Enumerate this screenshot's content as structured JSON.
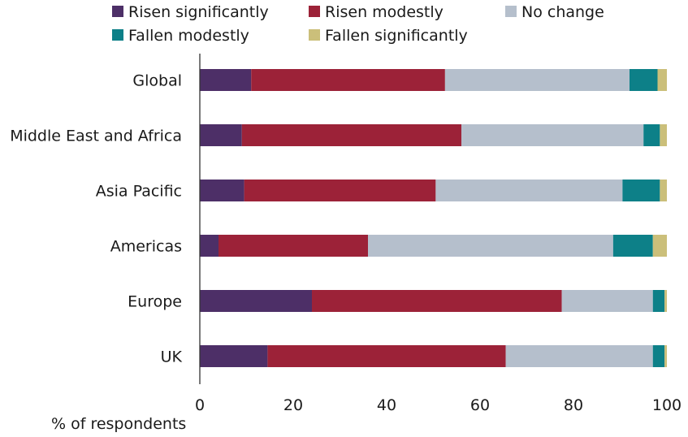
{
  "chart_data": {
    "type": "bar",
    "orientation": "horizontal",
    "stacked": true,
    "title": "",
    "xlabel": "% of respondents",
    "ylabel": "",
    "xlim": [
      0,
      100
    ],
    "xticks": [
      "0",
      "20",
      "40",
      "60",
      "80",
      "100"
    ],
    "grid": false,
    "legend_position": "top",
    "categories": [
      "Global",
      "Middle East and Africa",
      "Asia Pacific",
      "Americas",
      "Europe",
      "UK"
    ],
    "series": [
      {
        "name": "Risen significantly",
        "color": "#4d2f67",
        "values": [
          11,
          9,
          9.5,
          4,
          24,
          14.5
        ]
      },
      {
        "name": "Risen modestly",
        "color": "#9c2238",
        "values": [
          41.5,
          47,
          41,
          32,
          53.5,
          51
        ]
      },
      {
        "name": "No change",
        "color": "#b5bfcc",
        "values": [
          39.5,
          39,
          40,
          52.5,
          19.5,
          31.5
        ]
      },
      {
        "name": "Fallen modestly",
        "color": "#0d8088",
        "values": [
          6,
          3.5,
          8,
          8.5,
          2.5,
          2.5
        ]
      },
      {
        "name": "Fallen significantly",
        "color": "#cbbf7a",
        "values": [
          2,
          1.5,
          1.5,
          3,
          0.5,
          0.5
        ]
      }
    ]
  }
}
